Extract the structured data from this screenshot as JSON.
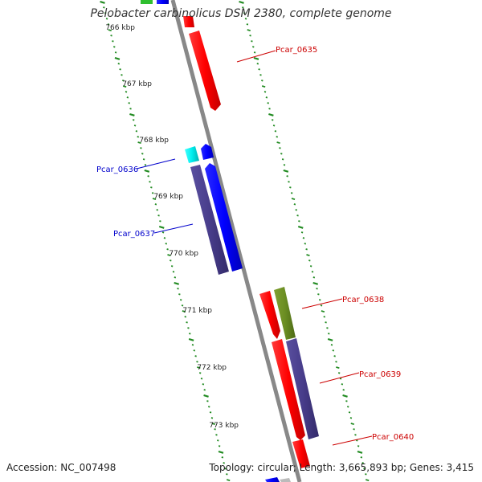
{
  "title": "Pelobacter carbinolicus DSM 2380, complete genome",
  "footer": {
    "accession": "Accession: NC_007498",
    "summary": "Topology: circular; Length: 3,665,893 bp; Genes: 3,415"
  },
  "colors": {
    "forward_strand": "#ff0000",
    "reverse_strand_blue": "#0000ff",
    "reverse_strand_slate": "#483d8b",
    "cyan_feature": "#00e5e5",
    "olive_feature": "#6b8e23",
    "backbone": "#888888",
    "tick": "#228b22",
    "forward_label": "#cc0000",
    "reverse_label": "#0000cc"
  },
  "scale_labels": [
    "766 kbp",
    "767 kbp",
    "768 kbp",
    "769 kbp",
    "770 kbp",
    "771 kbp",
    "772 kbp",
    "773 kbp"
  ],
  "genes": [
    {
      "label": "Pcar_0635",
      "strand": "forward",
      "color": "red"
    },
    {
      "label": "Pcar_0636",
      "strand": "reverse",
      "color": "cyan"
    },
    {
      "label": "Pcar_0637",
      "strand": "reverse",
      "color": "slate"
    },
    {
      "label": "Pcar_0638",
      "strand": "forward",
      "color": "olive"
    },
    {
      "label": "Pcar_0639",
      "strand": "forward",
      "color": "slate"
    },
    {
      "label": "Pcar_0640",
      "strand": "forward",
      "color": "red"
    }
  ]
}
